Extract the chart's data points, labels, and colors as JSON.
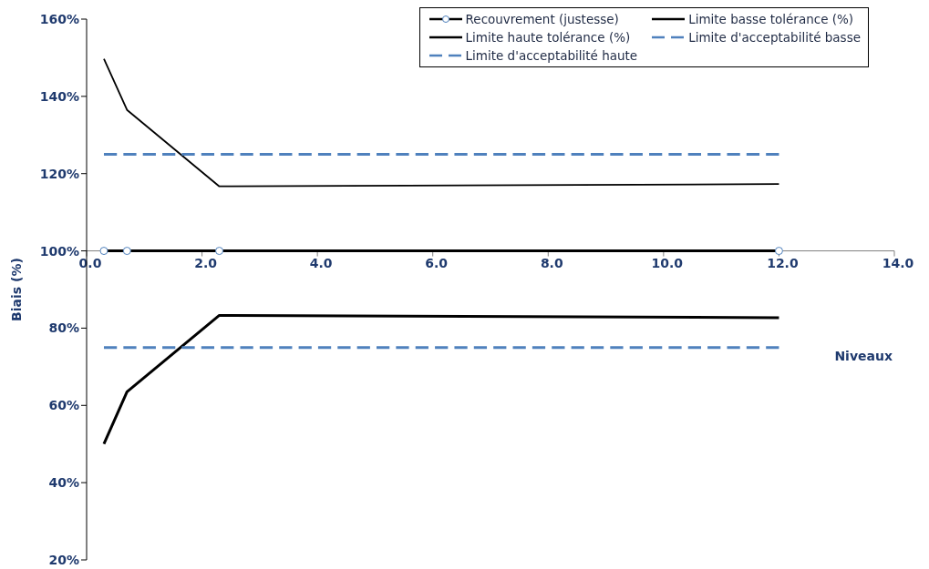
{
  "chart_data": {
    "type": "line",
    "xlabel": "Niveaux",
    "ylabel": "Biais (%)",
    "xlim": [
      0,
      14
    ],
    "xticks": [
      {
        "value": 0,
        "label": "0.0"
      },
      {
        "value": 2,
        "label": "2.0"
      },
      {
        "value": 4,
        "label": "4.0"
      },
      {
        "value": 6,
        "label": "6.0"
      },
      {
        "value": 8,
        "label": "8.0"
      },
      {
        "value": 10,
        "label": "10.0"
      },
      {
        "value": 12,
        "label": "12.0"
      },
      {
        "value": 14,
        "label": "14.0"
      }
    ],
    "ylim": [
      20,
      160
    ],
    "yticks": [
      {
        "value": 20,
        "label": "20%"
      },
      {
        "value": 40,
        "label": "40%"
      },
      {
        "value": 60,
        "label": "60%"
      },
      {
        "value": 80,
        "label": "80%"
      },
      {
        "value": 100,
        "label": "100%"
      },
      {
        "value": 120,
        "label": "120%"
      },
      {
        "value": 140,
        "label": "140%"
      },
      {
        "value": 160,
        "label": "160%"
      }
    ],
    "grid": false,
    "legend": "top right",
    "series": [
      {
        "name": "Recouvrement (justesse)",
        "color": "#000000",
        "x": [
          0.3,
          0.7,
          2.3,
          12.0
        ],
        "values": [
          100,
          100,
          100,
          100
        ],
        "marker": "circle",
        "line_style": "solid"
      },
      {
        "name": "Limite basse tolérance (%)",
        "color": "#000000",
        "x": [
          0.3,
          0.7,
          2.3,
          12.0
        ],
        "values": [
          50,
          63.5,
          83.3,
          82.7
        ],
        "marker": "none",
        "line_style": "solid"
      },
      {
        "name": "Limite haute tolérance (%)",
        "color": "#000000",
        "x": [
          0.3,
          0.7,
          2.3,
          12.0
        ],
        "values": [
          149.7,
          136.5,
          116.7,
          117.3
        ],
        "marker": "none",
        "line_style": "solid"
      },
      {
        "name": "Limite d'acceptabilité basse",
        "color": "#4f81bd",
        "x": [
          0.3,
          12.0
        ],
        "values": [
          75,
          75
        ],
        "marker": "none",
        "line_style": "dashed"
      },
      {
        "name": "Limite d'acceptabilité haute",
        "color": "#4f81bd",
        "x": [
          0.3,
          12.0
        ],
        "values": [
          125,
          125
        ],
        "marker": "none",
        "line_style": "dashed"
      }
    ]
  }
}
